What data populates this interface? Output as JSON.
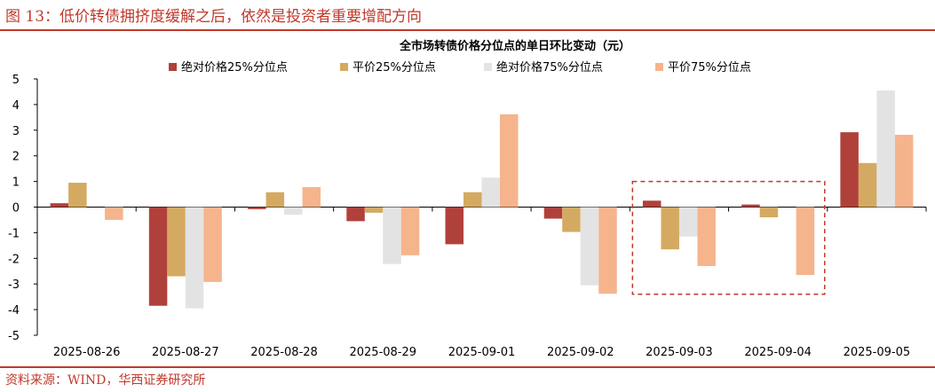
{
  "figure_title": "图 13：低价转债拥挤度缓解之后，依然是投资者重要增配方向",
  "source": "资料来源：WIND，华西证券研究所",
  "chart_data": {
    "type": "bar",
    "title": "全市场转债价格分位点的单日环比变动（元）",
    "xlabel": "",
    "ylabel": "",
    "categories": [
      "2025-08-26",
      "2025-08-27",
      "2025-08-28",
      "2025-08-29",
      "2025-09-01",
      "2025-09-02",
      "2025-09-03",
      "2025-09-04",
      "2025-09-05"
    ],
    "series": [
      {
        "name": "绝对价格25%分位点",
        "color": "#b0413a",
        "values": [
          0.15,
          -3.85,
          -0.08,
          -0.55,
          -1.45,
          -0.45,
          0.25,
          0.1,
          2.92
        ]
      },
      {
        "name": "平价25%分位点",
        "color": "#d4aa62",
        "values": [
          0.95,
          -2.7,
          0.58,
          -0.22,
          0.58,
          -0.97,
          -1.65,
          -0.4,
          1.72
        ]
      },
      {
        "name": "绝对价格75%分位点",
        "color": "#e3e3e3",
        "values": [
          0.0,
          -3.95,
          -0.3,
          -2.22,
          1.15,
          -3.05,
          -1.15,
          0.0,
          4.55
        ]
      },
      {
        "name": "平价75%分位点",
        "color": "#f5b48c",
        "values": [
          -0.5,
          -2.92,
          0.78,
          -1.88,
          3.62,
          -3.38,
          -2.3,
          -2.65,
          2.82
        ]
      }
    ],
    "ylim": [
      -5,
      5
    ],
    "yticks": [
      5,
      4,
      3,
      2,
      1,
      0,
      -1,
      -2,
      -3,
      -4,
      -5
    ],
    "grid": false,
    "legend_position": "top",
    "highlight_box": {
      "from_category": "2025-09-03",
      "to_category": "2025-09-04",
      "y_top": 1.0,
      "y_bottom": -3.4,
      "color": "#c0392b"
    }
  }
}
